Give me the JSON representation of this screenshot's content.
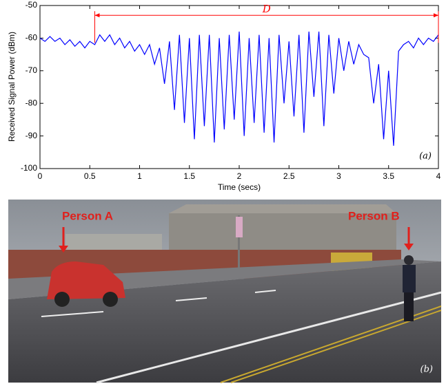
{
  "chart_data": {
    "type": "line",
    "x_label": "Time (secs)",
    "y_label": "Received Signal Power (dBm)",
    "panel_label": "(a)",
    "annotation": {
      "text": "D",
      "x_start": 0.55,
      "x_end": 4,
      "y": -53,
      "color": "#ff0000"
    },
    "x": [
      0,
      0.05,
      0.1,
      0.15,
      0.2,
      0.25,
      0.3,
      0.35,
      0.4,
      0.45,
      0.5,
      0.55,
      0.6,
      0.65,
      0.7,
      0.75,
      0.8,
      0.85,
      0.9,
      0.95,
      1.0,
      1.05,
      1.1,
      1.15,
      1.2,
      1.25,
      1.3,
      1.35,
      1.4,
      1.45,
      1.5,
      1.55,
      1.6,
      1.65,
      1.7,
      1.75,
      1.8,
      1.85,
      1.9,
      1.95,
      2.0,
      2.05,
      2.1,
      2.15,
      2.2,
      2.25,
      2.3,
      2.35,
      2.4,
      2.45,
      2.5,
      2.55,
      2.6,
      2.65,
      2.7,
      2.75,
      2.8,
      2.85,
      2.9,
      2.95,
      3.0,
      3.05,
      3.1,
      3.15,
      3.2,
      3.25,
      3.3,
      3.35,
      3.4,
      3.45,
      3.5,
      3.55,
      3.6,
      3.65,
      3.7,
      3.75,
      3.8,
      3.85,
      3.9,
      3.95,
      4.0
    ],
    "series": [
      {
        "color": "#0000ff",
        "values": [
          -60,
          -61,
          -59.5,
          -61,
          -60,
          -62,
          -60.5,
          -62.5,
          -61,
          -63,
          -61,
          -62,
          -59,
          -61,
          -59,
          -62,
          -60,
          -63,
          -61,
          -64,
          -62,
          -65,
          -62,
          -68,
          -63,
          -74,
          -61,
          -82,
          -59,
          -86,
          -60,
          -91,
          -59,
          -87,
          -59,
          -92,
          -60,
          -88,
          -59,
          -85,
          -58,
          -90,
          -60,
          -86,
          -59,
          -89,
          -60,
          -92,
          -59,
          -80,
          -61,
          -84,
          -59,
          -89,
          -58,
          -78,
          -58,
          -87,
          -59,
          -77,
          -60,
          -70,
          -61,
          -68,
          -62,
          -65,
          -66,
          -80,
          -68,
          -91,
          -70,
          -93,
          -64,
          -62,
          -61,
          -63,
          -60,
          -62,
          -60,
          -61,
          -59
        ]
      }
    ],
    "xlim": [
      0,
      4
    ],
    "xticks": [
      0,
      0.5,
      1,
      1.5,
      2,
      2.5,
      3,
      3.5,
      4
    ],
    "ylim": [
      -100,
      -50
    ],
    "yticks": [
      -100,
      -90,
      -80,
      -70,
      -60,
      -50
    ]
  },
  "photo": {
    "label_a": "Person A",
    "label_b": "Person B",
    "panel_label": "(b)"
  }
}
